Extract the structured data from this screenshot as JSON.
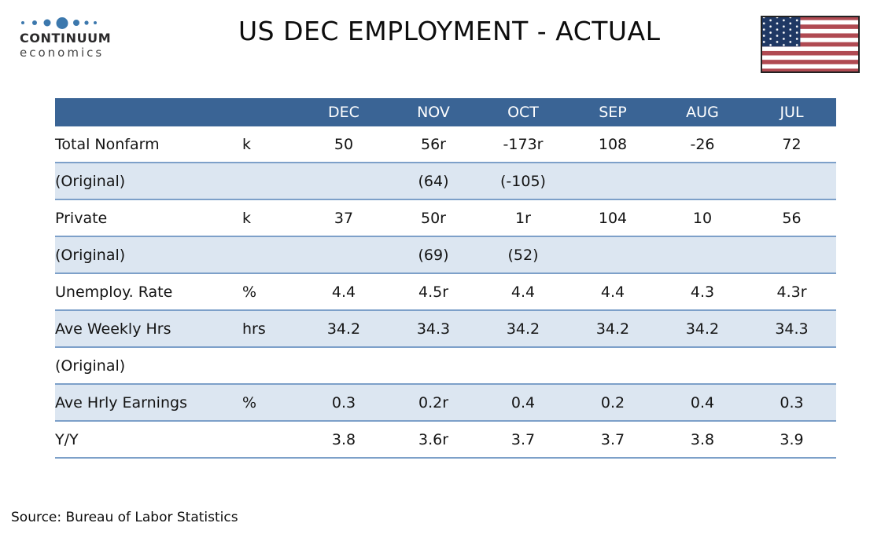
{
  "title": "US DEC EMPLOYMENT - ACTUAL",
  "logo": {
    "name": "CONTINUUM",
    "subtitle": "economics",
    "dots_icon": "continuum-dots-icon"
  },
  "flag": {
    "icon": "us-flag-icon",
    "country": "US"
  },
  "source": "Source: Bureau of Labor Statistics",
  "colors": {
    "header_bg": "#3a6495",
    "band_bg": "#dce6f1",
    "row_border": "#7da0c9",
    "logo_blue": "#3c78ad",
    "flag_red": "#b04a52",
    "flag_navy": "#1f3864",
    "header_text": "#ffffff",
    "body_text": "#141414"
  },
  "chart_data": {
    "type": "table",
    "title": "US DEC EMPLOYMENT - ACTUAL",
    "month_columns": [
      "DEC",
      "NOV",
      "OCT",
      "SEP",
      "AUG",
      "JUL"
    ],
    "rows": [
      {
        "label": "Total Nonfarm",
        "unit": "k",
        "values": [
          "50",
          "56r",
          "-173r",
          "108",
          "-26",
          "72"
        ]
      },
      {
        "label": "(Original)",
        "unit": "",
        "values": [
          "",
          "(64)",
          "(-105)",
          "",
          "",
          ""
        ]
      },
      {
        "label": "Private",
        "unit": "k",
        "values": [
          "37",
          "50r",
          "1r",
          "104",
          "10",
          "56"
        ]
      },
      {
        "label": "(Original)",
        "unit": "",
        "values": [
          "",
          "(69)",
          "(52)",
          "",
          "",
          ""
        ]
      },
      {
        "label": "Unemploy. Rate",
        "unit": "%",
        "values": [
          "4.4",
          "4.5r",
          "4.4",
          "4.4",
          "4.3",
          "4.3r"
        ]
      },
      {
        "label": "Ave Weekly Hrs",
        "unit": "hrs",
        "values": [
          "34.2",
          "34.3",
          "34.2",
          "34.2",
          "34.2",
          "34.3"
        ]
      },
      {
        "label": "(Original)",
        "unit": "",
        "values": [
          "",
          "",
          "",
          "",
          "",
          ""
        ]
      },
      {
        "label": "Ave Hrly Earnings",
        "unit": "%",
        "values": [
          "0.3",
          "0.2r",
          "0.4",
          "0.2",
          "0.4",
          "0.3"
        ]
      },
      {
        "label": "Y/Y",
        "unit": "",
        "values": [
          "3.8",
          "3.6r",
          "3.7",
          "3.7",
          "3.8",
          "3.9"
        ]
      }
    ]
  }
}
